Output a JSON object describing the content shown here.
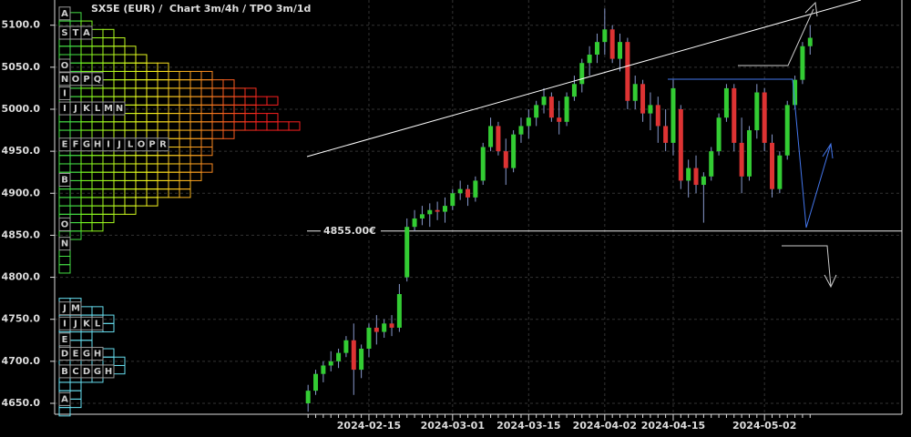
{
  "chart_data": {
    "type": "candlestick",
    "title": "SX5E (EUR) /  Chart 3m/4h / TPO 3m/1d",
    "categories": [
      null,
      null,
      null,
      null,
      null,
      null,
      null,
      null,
      "2024-02-15",
      null,
      null,
      null,
      null,
      null,
      null,
      null,
      null,
      null,
      null,
      "2024-03-01",
      null,
      null,
      null,
      null,
      null,
      null,
      null,
      null,
      null,
      "2024-03-15",
      null,
      null,
      null,
      null,
      null,
      null,
      null,
      null,
      null,
      "2024-04-02",
      null,
      null,
      null,
      null,
      null,
      null,
      null,
      null,
      "2024-04-15",
      null,
      null,
      null,
      null,
      null,
      null,
      null,
      null,
      null,
      null,
      null,
      "2024-05-02",
      null,
      null,
      null,
      null,
      null,
      null
    ],
    "ohlc": [
      [
        4650,
        4672,
        4640,
        4665
      ],
      [
        4665,
        4690,
        4660,
        4685
      ],
      [
        4685,
        4700,
        4675,
        4695
      ],
      [
        4695,
        4712,
        4688,
        4700
      ],
      [
        4700,
        4715,
        4692,
        4710
      ],
      [
        4710,
        4730,
        4705,
        4725
      ],
      [
        4725,
        4745,
        4660,
        4690
      ],
      [
        4690,
        4720,
        4680,
        4715
      ],
      [
        4715,
        4745,
        4705,
        4740
      ],
      [
        4740,
        4755,
        4720,
        4735
      ],
      [
        4735,
        4750,
        4728,
        4745
      ],
      [
        4745,
        4755,
        4730,
        4740
      ],
      [
        4740,
        4792,
        4735,
        4780
      ],
      [
        4800,
        4870,
        4795,
        4860
      ],
      [
        4860,
        4880,
        4855,
        4870
      ],
      [
        4870,
        4885,
        4862,
        4875
      ],
      [
        4875,
        4888,
        4860,
        4880
      ],
      [
        4880,
        4890,
        4868,
        4878
      ],
      [
        4878,
        4895,
        4865,
        4885
      ],
      [
        4885,
        4905,
        4880,
        4900
      ],
      [
        4900,
        4915,
        4892,
        4905
      ],
      [
        4905,
        4910,
        4885,
        4895
      ],
      [
        4895,
        4920,
        4890,
        4915
      ],
      [
        4915,
        4960,
        4910,
        4955
      ],
      [
        4955,
        4990,
        4950,
        4980
      ],
      [
        4980,
        4985,
        4945,
        4950
      ],
      [
        4950,
        4965,
        4910,
        4930
      ],
      [
        4930,
        4975,
        4925,
        4970
      ],
      [
        4970,
        4990,
        4960,
        4980
      ],
      [
        4980,
        5000,
        4965,
        4990
      ],
      [
        4990,
        5010,
        4980,
        5005
      ],
      [
        5005,
        5025,
        4995,
        5015
      ],
      [
        5015,
        5020,
        4985,
        4990
      ],
      [
        4990,
        5010,
        4970,
        4985
      ],
      [
        4985,
        5020,
        4980,
        5015
      ],
      [
        5015,
        5040,
        5010,
        5030
      ],
      [
        5030,
        5060,
        5020,
        5055
      ],
      [
        5055,
        5075,
        5040,
        5065
      ],
      [
        5065,
        5090,
        5055,
        5080
      ],
      [
        5080,
        5120,
        5065,
        5095
      ],
      [
        5095,
        5100,
        5055,
        5060
      ],
      [
        5060,
        5090,
        5045,
        5080
      ],
      [
        5080,
        5085,
        5000,
        5010
      ],
      [
        5010,
        5040,
        5000,
        5030
      ],
      [
        5030,
        5035,
        4985,
        4995
      ],
      [
        4995,
        5020,
        4975,
        5005
      ],
      [
        5005,
        5015,
        4960,
        4980
      ],
      [
        4980,
        5000,
        4950,
        4960
      ],
      [
        4960,
        5035,
        4945,
        5025
      ],
      [
        5000,
        5005,
        4905,
        4915
      ],
      [
        4915,
        4940,
        4895,
        4930
      ],
      [
        4930,
        4945,
        4900,
        4910
      ],
      [
        4910,
        4925,
        4865,
        4920
      ],
      [
        4920,
        4955,
        4915,
        4950
      ],
      [
        4950,
        4995,
        4945,
        4990
      ],
      [
        4990,
        5030,
        4985,
        5025
      ],
      [
        5025,
        5030,
        4950,
        4960
      ],
      [
        4960,
        4990,
        4900,
        4920
      ],
      [
        4920,
        4980,
        4915,
        4975
      ],
      [
        4975,
        5030,
        4965,
        5020
      ],
      [
        5020,
        5025,
        4950,
        4960
      ],
      [
        4960,
        4970,
        4895,
        4905
      ],
      [
        4905,
        4950,
        4900,
        4945
      ],
      [
        4945,
        5010,
        4940,
        5005
      ],
      [
        5005,
        5040,
        5000,
        5035
      ],
      [
        5035,
        5080,
        5030,
        5075
      ],
      [
        5075,
        5100,
        5065,
        5085
      ]
    ],
    "up_color": "#33cc33",
    "down_color": "#dd3333",
    "ylim": [
      4637,
      5130
    ],
    "yticks": [
      {
        "value": 4650,
        "label": "4650.0"
      },
      {
        "value": 4700,
        "label": "4700.0"
      },
      {
        "value": 4750,
        "label": "4750.0"
      },
      {
        "value": 4800,
        "label": "4800.0"
      },
      {
        "value": 4850,
        "label": "4850.0"
      },
      {
        "value": 4900,
        "label": "4900.0"
      },
      {
        "value": 4950,
        "label": "4950.0"
      },
      {
        "value": 5000,
        "label": "5000.0"
      },
      {
        "value": 5050,
        "label": "5050.0"
      },
      {
        "value": 5100,
        "label": "5100.0"
      }
    ],
    "grid": true,
    "level": {
      "value": 4855,
      "label": "4855.00€"
    },
    "tpo_profiles": [
      {
        "color": "gradient",
        "prices": [
          5110,
          5100,
          5090,
          5080,
          5070,
          5060,
          5050,
          5040,
          5030,
          5020,
          5010,
          5000,
          4990,
          4980,
          4970,
          4960,
          4950,
          4940,
          4930,
          4920,
          4910,
          4900,
          4890,
          4880,
          4870,
          4860,
          4850,
          4840,
          4830,
          4820,
          4810
        ],
        "counts": [
          2,
          3,
          5,
          6,
          7,
          8,
          10,
          14,
          16,
          18,
          20,
          18,
          20,
          22,
          16,
          14,
          14,
          13,
          14,
          13,
          12,
          12,
          9,
          7,
          5,
          4,
          2,
          1,
          1,
          1,
          1
        ]
      },
      {
        "color": "#66ddee",
        "prices": [
          4770,
          4760,
          4750,
          4740,
          4730,
          4720,
          4710,
          4700,
          4690,
          4680,
          4670,
          4660,
          4650,
          4640
        ],
        "counts": [
          2,
          4,
          5,
          5,
          3,
          3,
          5,
          6,
          6,
          4,
          2,
          2,
          2,
          1
        ]
      }
    ],
    "tpo_labels": [
      {
        "price": 5114,
        "letters": [
          "A"
        ]
      },
      {
        "price": 5091,
        "letters": [
          "S",
          "T",
          "A"
        ]
      },
      {
        "price": 5052,
        "letters": [
          "O"
        ]
      },
      {
        "price": 5036,
        "letters": [
          "N",
          "O",
          "P",
          "Q"
        ]
      },
      {
        "price": 5019,
        "letters": [
          "I"
        ]
      },
      {
        "price": 5001,
        "letters": [
          "I",
          "J",
          "K",
          "L",
          "M",
          "N"
        ]
      },
      {
        "price": 4958,
        "letters": [
          "E",
          "F",
          "G",
          "H",
          "I",
          "J",
          "L",
          "O",
          "P",
          "R"
        ]
      },
      {
        "price": 4916,
        "letters": [
          "B"
        ]
      },
      {
        "price": 4863,
        "letters": [
          "O"
        ]
      },
      {
        "price": 4840,
        "letters": [
          "N"
        ]
      },
      {
        "price": 4763,
        "letters": [
          "J",
          "M"
        ]
      },
      {
        "price": 4745,
        "letters": [
          "I",
          "J",
          "K",
          "L"
        ]
      },
      {
        "price": 4726,
        "letters": [
          "E"
        ]
      },
      {
        "price": 4709,
        "letters": [
          "D",
          "E",
          "G",
          "H"
        ]
      },
      {
        "price": 4688,
        "letters": [
          "B",
          "C",
          "D",
          "G",
          "H"
        ]
      },
      {
        "price": 4655,
        "letters": [
          "A"
        ]
      }
    ]
  }
}
